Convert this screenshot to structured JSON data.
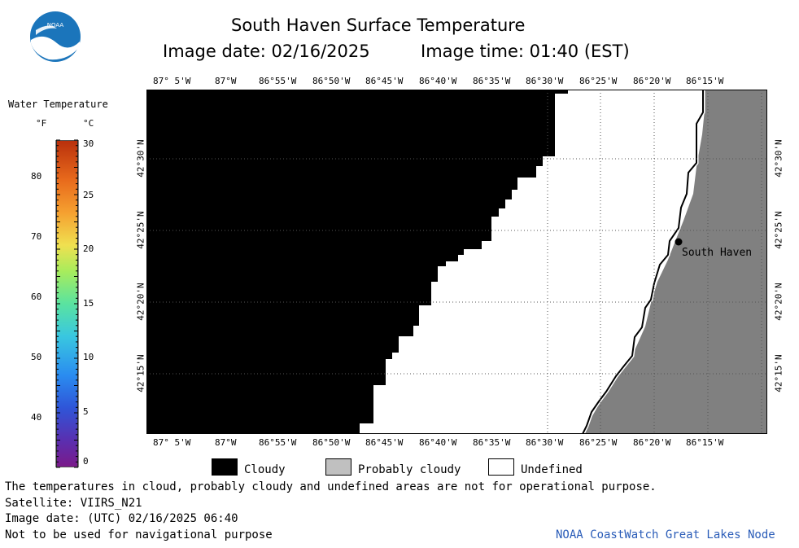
{
  "header": {
    "title": "South Haven Surface Temperature",
    "image_date_label": "Image date: 02/16/2025",
    "image_time_label": "Image time: 01:40 (EST)"
  },
  "logo": {
    "text": "NOAA"
  },
  "colorbar": {
    "title": "Water Temperature",
    "unit_f": "°F",
    "unit_c": "°C",
    "f_ticks": [
      "80",
      "70",
      "60",
      "50",
      "40"
    ],
    "c_ticks": [
      "30",
      "25",
      "20",
      "15",
      "10",
      "5",
      "0"
    ]
  },
  "map": {
    "lon_labels": [
      "87° 5'W",
      "87°W",
      "86°55'W",
      "86°50'W",
      "86°45'W",
      "86°40'W",
      "86°35'W",
      "86°30'W",
      "86°25'W",
      "86°20'W",
      "86°15'W"
    ],
    "lat_labels": [
      "42°30'N",
      "42°25'N",
      "42°20'N",
      "42°15'N"
    ],
    "city": "South Haven"
  },
  "legend": {
    "cloudy": "Cloudy",
    "probably_cloudy": "Probably cloudy",
    "undefined": "Undefined",
    "colors": {
      "cloudy": "#000000",
      "probably_cloudy": "#c0c0c0",
      "undefined": "#ffffff",
      "land": "#808080"
    }
  },
  "footer": {
    "disclaimer": "The temperatures in cloud, probably cloudy and undefined areas are not for operational purpose.",
    "satellite": "Satellite: VIIRS_N21",
    "utc_date": "Image date: (UTC) 02/16/2025  06:40",
    "nav_warning": "Not to be used for navigational purpose",
    "credit": "NOAA CoastWatch Great Lakes Node"
  }
}
